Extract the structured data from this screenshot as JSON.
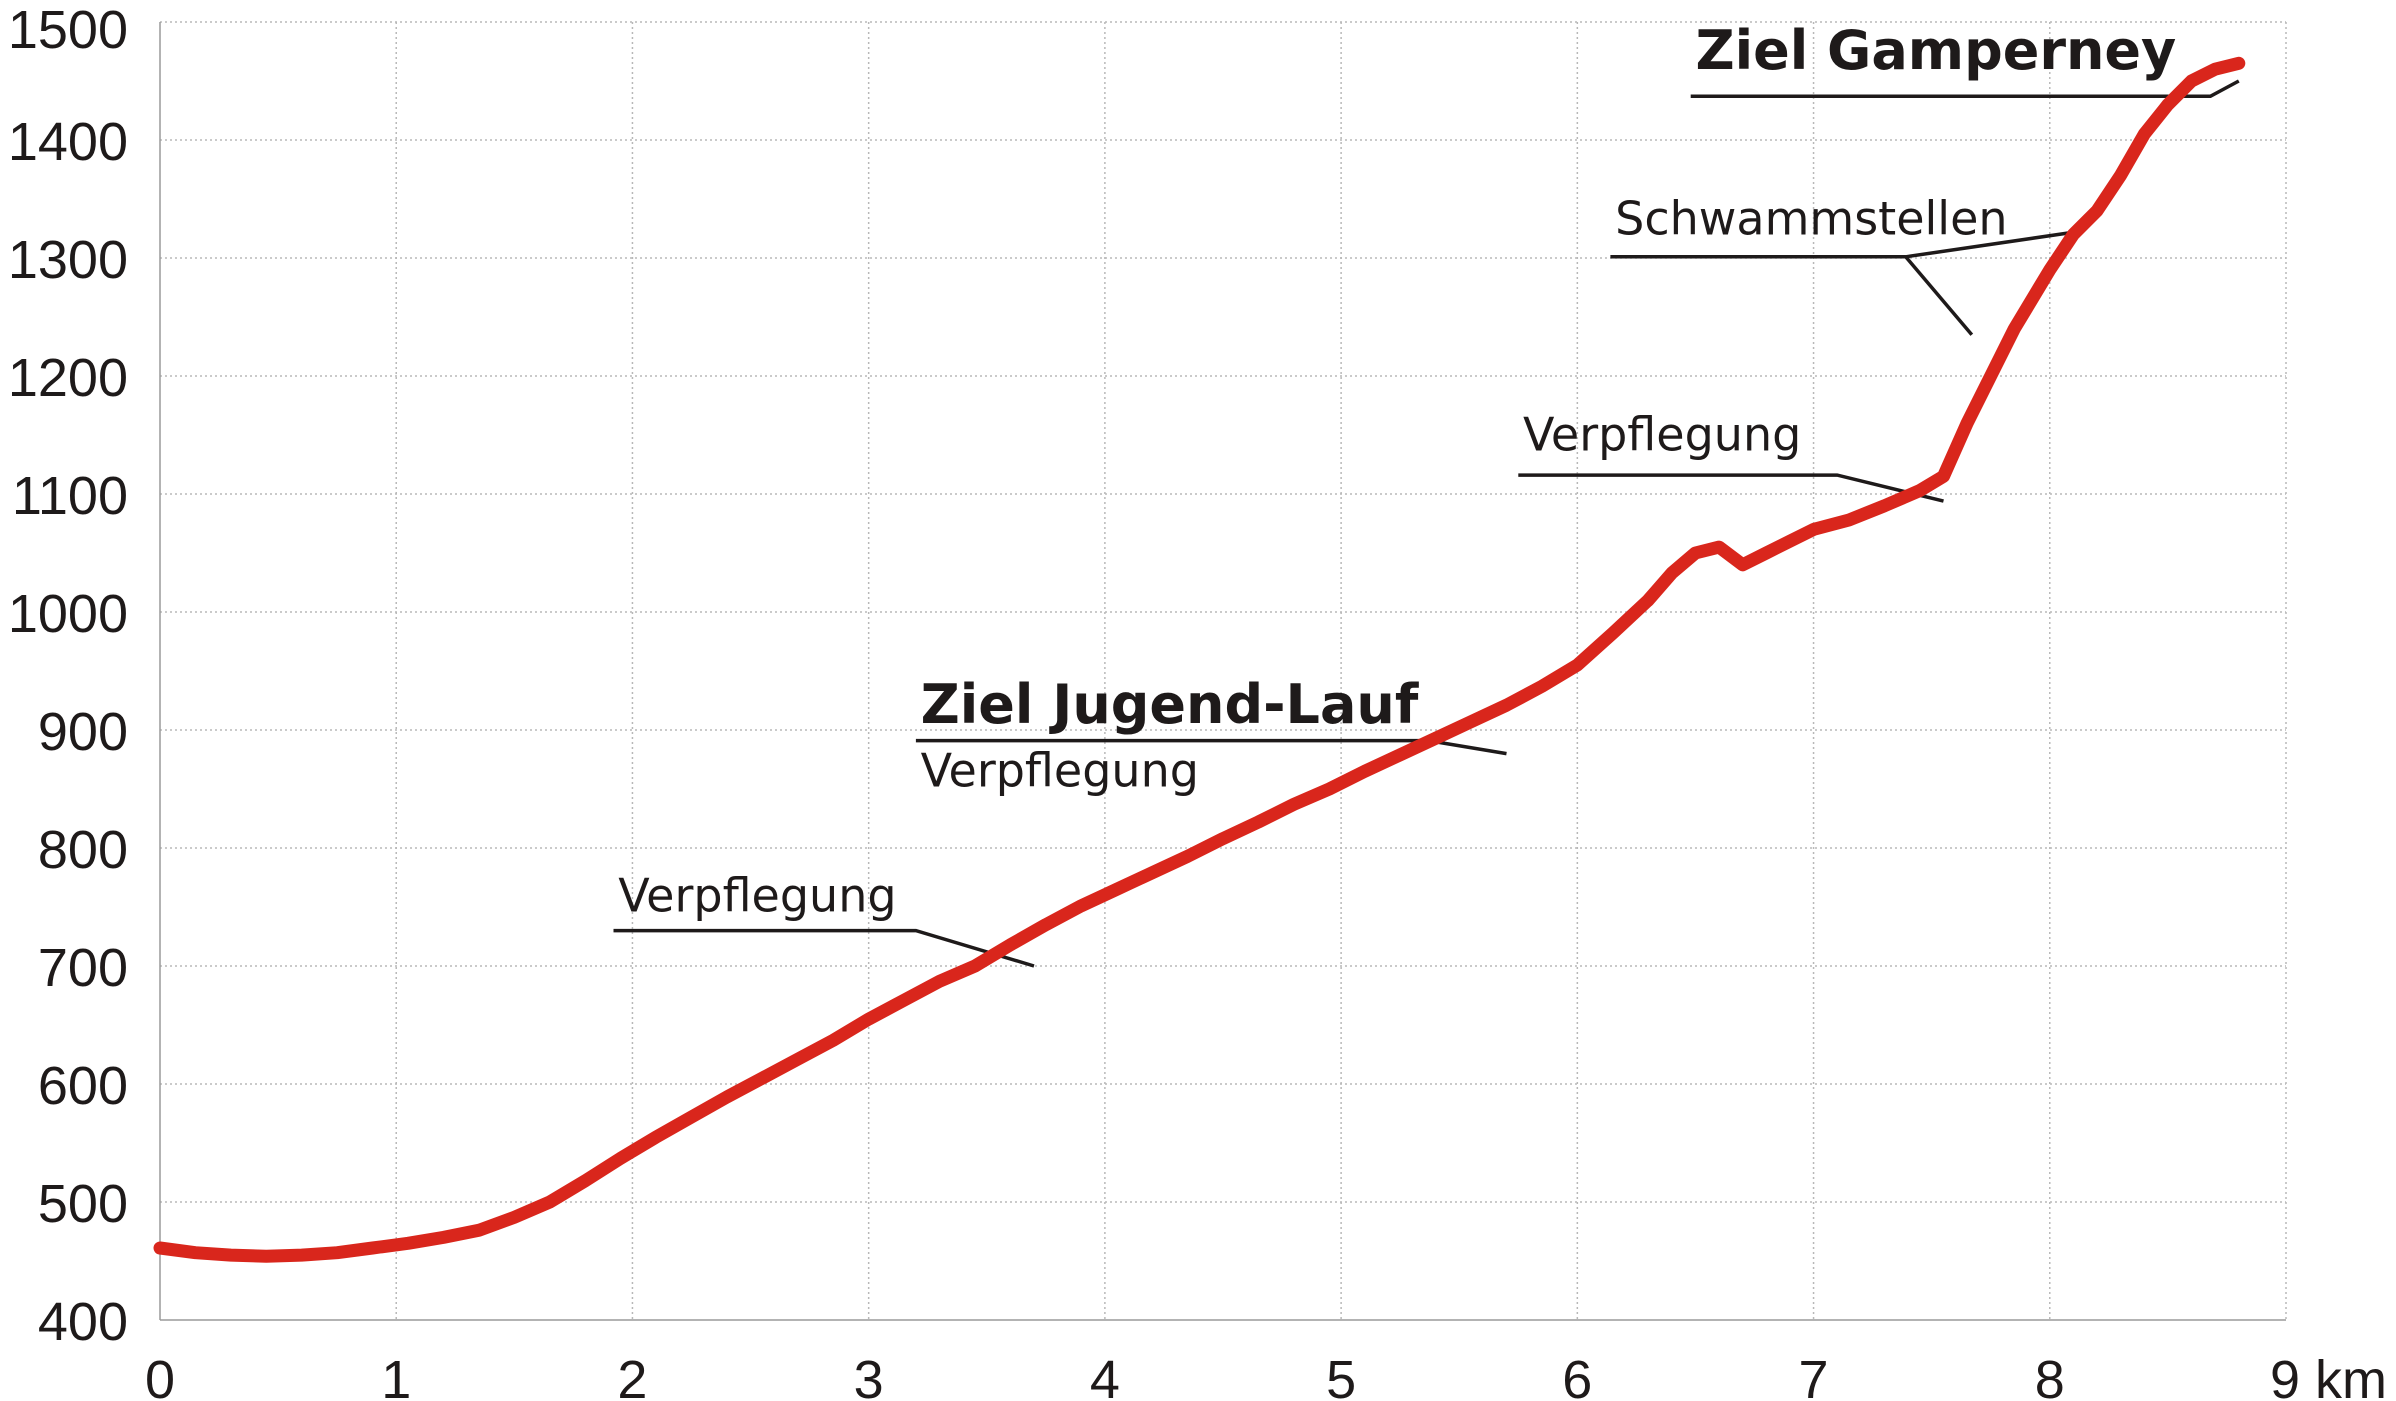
{
  "chart_data": {
    "type": "line",
    "title": "",
    "xlabel": "",
    "ylabel": "",
    "x_unit": "km",
    "xlim": [
      0,
      9
    ],
    "ylim": [
      400,
      1500
    ],
    "x_ticks": [
      "0",
      "1",
      "2",
      "3",
      "4",
      "5",
      "6",
      "7",
      "8",
      "9"
    ],
    "y_ticks": [
      "400",
      "500",
      "600",
      "700",
      "800",
      "900",
      "1000",
      "1100",
      "1200",
      "1300",
      "1400",
      "1500"
    ],
    "grid": true,
    "line_color": "#d9261c",
    "series": [
      {
        "name": "",
        "x": [
          0,
          0.15,
          0.3,
          0.45,
          0.6,
          0.75,
          0.9,
          1.05,
          1.2,
          1.35,
          1.5,
          1.65,
          1.8,
          1.95,
          2.1,
          2.25,
          2.4,
          2.55,
          2.7,
          2.85,
          3.0,
          3.15,
          3.3,
          3.45,
          3.6,
          3.75,
          3.9,
          4.05,
          4.2,
          4.35,
          4.5,
          4.65,
          4.8,
          4.95,
          5.1,
          5.25,
          5.4,
          5.55,
          5.7,
          5.85,
          6.0,
          6.15,
          6.3,
          6.4,
          6.5,
          6.6,
          6.7,
          6.8,
          6.9,
          7.0,
          7.15,
          7.3,
          7.45,
          7.55,
          7.65,
          7.75,
          7.85,
          8.0,
          8.1,
          8.2,
          8.3,
          8.4,
          8.5,
          8.6,
          8.7,
          8.8
        ],
        "values": [
          461,
          457,
          455,
          454,
          455,
          457,
          461,
          465,
          470,
          476,
          487,
          500,
          518,
          537,
          555,
          572,
          589,
          605,
          621,
          637,
          655,
          671,
          687,
          700,
          718,
          735,
          751,
          765,
          779,
          793,
          808,
          822,
          837,
          850,
          865,
          879,
          893,
          907,
          921,
          937,
          955,
          982,
          1010,
          1033,
          1050,
          1055,
          1040,
          1050,
          1060,
          1070,
          1078,
          1090,
          1103,
          1115,
          1160,
          1200,
          1240,
          1290,
          1320,
          1340,
          1370,
          1405,
          1430,
          1450,
          1460,
          1465
        ]
      }
    ],
    "annotations": [
      {
        "text": "Ziel Gamperney",
        "bold": true
      },
      {
        "text": "Schwammstellen",
        "bold": false
      },
      {
        "text": "Verpflegung",
        "bold": false
      },
      {
        "text": "Ziel Jugend-Lauf",
        "bold": true
      },
      {
        "text": "Verpflegung",
        "bold": false
      },
      {
        "text": "Verpflegung",
        "bold": false
      }
    ]
  }
}
